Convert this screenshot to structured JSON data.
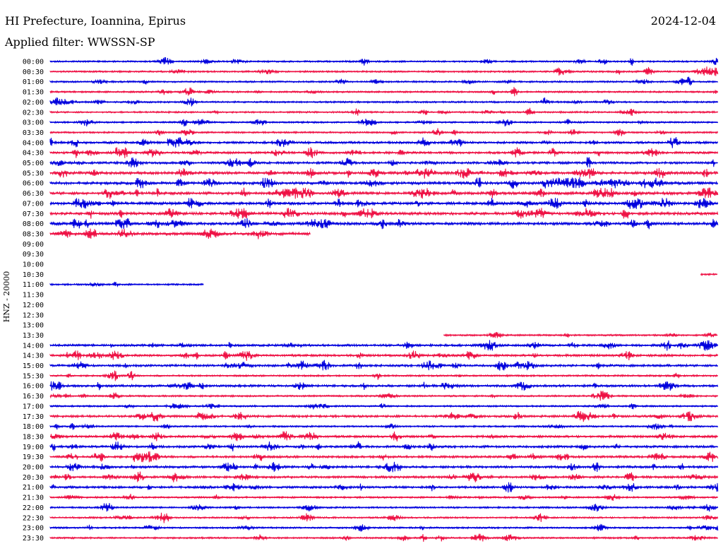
{
  "header": {
    "title": "HI Prefecture, Ioannina, Epirus",
    "date": "2024-12-04",
    "filter": "Applied filter: WWSSN-SP",
    "channel": "HNZ - 20000"
  },
  "colors": {
    "odd_trace": "#0000dd",
    "even_trace": "#ee1144",
    "background": "#ffffff"
  },
  "chart_data": {
    "type": "line",
    "title": "HI Prefecture, Ioannina, Epirus",
    "subtitle": "Applied filter: WWSSN-SP",
    "ylabel": "HNZ - 20000",
    "xlabel": "",
    "grid": false,
    "legend": "none",
    "series": [
      {
        "time": "00:00",
        "color": "blue",
        "start": 0.0,
        "end": 1.0,
        "activity": 1
      },
      {
        "time": "00:30",
        "color": "red",
        "start": 0.0,
        "end": 1.0,
        "activity": 1
      },
      {
        "time": "01:00",
        "color": "blue",
        "start": 0.0,
        "end": 1.0,
        "activity": 1
      },
      {
        "time": "01:30",
        "color": "red",
        "start": 0.0,
        "end": 1.0,
        "activity": 1
      },
      {
        "time": "02:00",
        "color": "blue",
        "start": 0.0,
        "end": 1.0,
        "activity": 1
      },
      {
        "time": "02:30",
        "color": "red",
        "start": 0.0,
        "end": 1.0,
        "activity": 1
      },
      {
        "time": "03:00",
        "color": "blue",
        "start": 0.0,
        "end": 1.0,
        "activity": 1
      },
      {
        "time": "03:30",
        "color": "red",
        "start": 0.0,
        "end": 1.0,
        "activity": 1
      },
      {
        "time": "04:00",
        "color": "blue",
        "start": 0.0,
        "end": 1.0,
        "activity": 2
      },
      {
        "time": "04:30",
        "color": "red",
        "start": 0.0,
        "end": 1.0,
        "activity": 2
      },
      {
        "time": "05:00",
        "color": "blue",
        "start": 0.0,
        "end": 1.0,
        "activity": 2
      },
      {
        "time": "05:30",
        "color": "red",
        "start": 0.0,
        "end": 1.0,
        "activity": 3
      },
      {
        "time": "06:00",
        "color": "blue",
        "start": 0.0,
        "end": 1.0,
        "activity": 3
      },
      {
        "time": "06:30",
        "color": "red",
        "start": 0.0,
        "end": 1.0,
        "activity": 3
      },
      {
        "time": "07:00",
        "color": "blue",
        "start": 0.0,
        "end": 1.0,
        "activity": 3
      },
      {
        "time": "07:30",
        "color": "red",
        "start": 0.0,
        "end": 1.0,
        "activity": 3
      },
      {
        "time": "08:00",
        "color": "blue",
        "start": 0.0,
        "end": 1.0,
        "activity": 3
      },
      {
        "time": "08:30",
        "color": "red",
        "start": 0.0,
        "end": 0.39,
        "activity": 3
      },
      {
        "time": "09:00",
        "color": "blue",
        "start": 0,
        "end": 0,
        "activity": 0
      },
      {
        "time": "09:30",
        "color": "red",
        "start": 0,
        "end": 0,
        "activity": 0
      },
      {
        "time": "10:00",
        "color": "blue",
        "start": 0,
        "end": 0,
        "activity": 0
      },
      {
        "time": "10:30",
        "color": "red",
        "start": 0.975,
        "end": 1.0,
        "activity": 1
      },
      {
        "time": "11:00",
        "color": "blue",
        "start": 0.0,
        "end": 0.23,
        "activity": 1
      },
      {
        "time": "11:30",
        "color": "red",
        "start": 0,
        "end": 0,
        "activity": 0
      },
      {
        "time": "12:00",
        "color": "blue",
        "start": 0,
        "end": 0,
        "activity": 0
      },
      {
        "time": "12:30",
        "color": "red",
        "start": 0,
        "end": 0,
        "activity": 0
      },
      {
        "time": "13:00",
        "color": "blue",
        "start": 0,
        "end": 0,
        "activity": 0
      },
      {
        "time": "13:30",
        "color": "red",
        "start": 0.59,
        "end": 1.0,
        "activity": 1
      },
      {
        "time": "14:00",
        "color": "blue",
        "start": 0.0,
        "end": 1.0,
        "activity": 2
      },
      {
        "time": "14:30",
        "color": "red",
        "start": 0.0,
        "end": 1.0,
        "activity": 2
      },
      {
        "time": "15:00",
        "color": "blue",
        "start": 0.0,
        "end": 1.0,
        "activity": 2
      },
      {
        "time": "15:30",
        "color": "red",
        "start": 0.0,
        "end": 1.0,
        "activity": 1
      },
      {
        "time": "16:00",
        "color": "blue",
        "start": 0.0,
        "end": 1.0,
        "activity": 2
      },
      {
        "time": "16:30",
        "color": "red",
        "start": 0.0,
        "end": 1.0,
        "activity": 1
      },
      {
        "time": "17:00",
        "color": "blue",
        "start": 0.0,
        "end": 1.0,
        "activity": 1
      },
      {
        "time": "17:30",
        "color": "red",
        "start": 0.0,
        "end": 1.0,
        "activity": 2
      },
      {
        "time": "18:00",
        "color": "blue",
        "start": 0.0,
        "end": 1.0,
        "activity": 1
      },
      {
        "time": "18:30",
        "color": "red",
        "start": 0.0,
        "end": 1.0,
        "activity": 2
      },
      {
        "time": "19:00",
        "color": "blue",
        "start": 0.0,
        "end": 1.0,
        "activity": 2
      },
      {
        "time": "19:30",
        "color": "red",
        "start": 0.0,
        "end": 1.0,
        "activity": 2
      },
      {
        "time": "20:00",
        "color": "blue",
        "start": 0.0,
        "end": 1.0,
        "activity": 2
      },
      {
        "time": "20:30",
        "color": "red",
        "start": 0.0,
        "end": 1.0,
        "activity": 2
      },
      {
        "time": "21:00",
        "color": "blue",
        "start": 0.0,
        "end": 1.0,
        "activity": 2
      },
      {
        "time": "21:30",
        "color": "red",
        "start": 0.0,
        "end": 1.0,
        "activity": 1
      },
      {
        "time": "22:00",
        "color": "blue",
        "start": 0.0,
        "end": 1.0,
        "activity": 1
      },
      {
        "time": "22:30",
        "color": "red",
        "start": 0.0,
        "end": 1.0,
        "activity": 1
      },
      {
        "time": "23:00",
        "color": "blue",
        "start": 0.0,
        "end": 1.0,
        "activity": 1
      },
      {
        "time": "23:30",
        "color": "red",
        "start": 0.0,
        "end": 1.0,
        "activity": 1
      }
    ]
  }
}
